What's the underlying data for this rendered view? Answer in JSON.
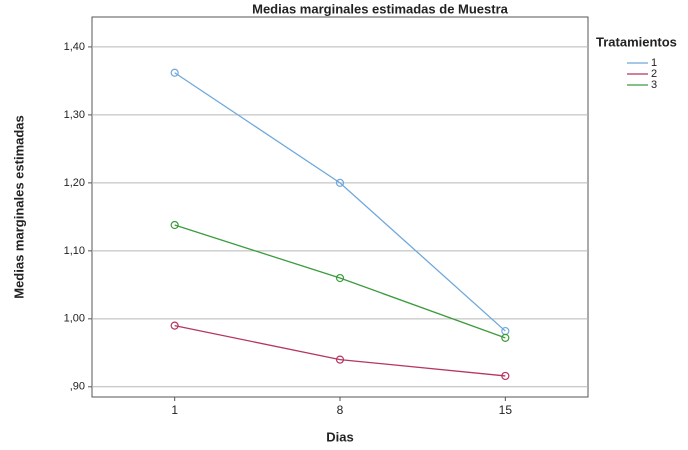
{
  "chart_data": {
    "type": "line",
    "title": "Medias marginales estimadas de Muestra",
    "x_label": "Dias",
    "y_label": "Medias marginales estimadas",
    "categories": [
      "1",
      "8",
      "15"
    ],
    "legend_title": "Tratamientos",
    "series": [
      {
        "name": "1",
        "color": "#6fa8dc",
        "values": [
          1.362,
          1.2,
          0.982
        ]
      },
      {
        "name": "2",
        "color": "#b5365e",
        "values": [
          0.99,
          0.94,
          0.916
        ]
      },
      {
        "name": "3",
        "color": "#3d9b3d",
        "values": [
          1.138,
          1.06,
          0.972
        ]
      }
    ],
    "ylim": [
      0.885,
      1.444
    ],
    "yticks": [
      {
        "value": 0.9,
        "label": ",90"
      },
      {
        "value": 1.0,
        "label": "1,00"
      },
      {
        "value": 1.1,
        "label": "1,10"
      },
      {
        "value": 1.2,
        "label": "1,20"
      },
      {
        "value": 1.3,
        "label": "1,30"
      },
      {
        "value": 1.4,
        "label": "1,40"
      }
    ],
    "grid": true,
    "legend": "right"
  }
}
